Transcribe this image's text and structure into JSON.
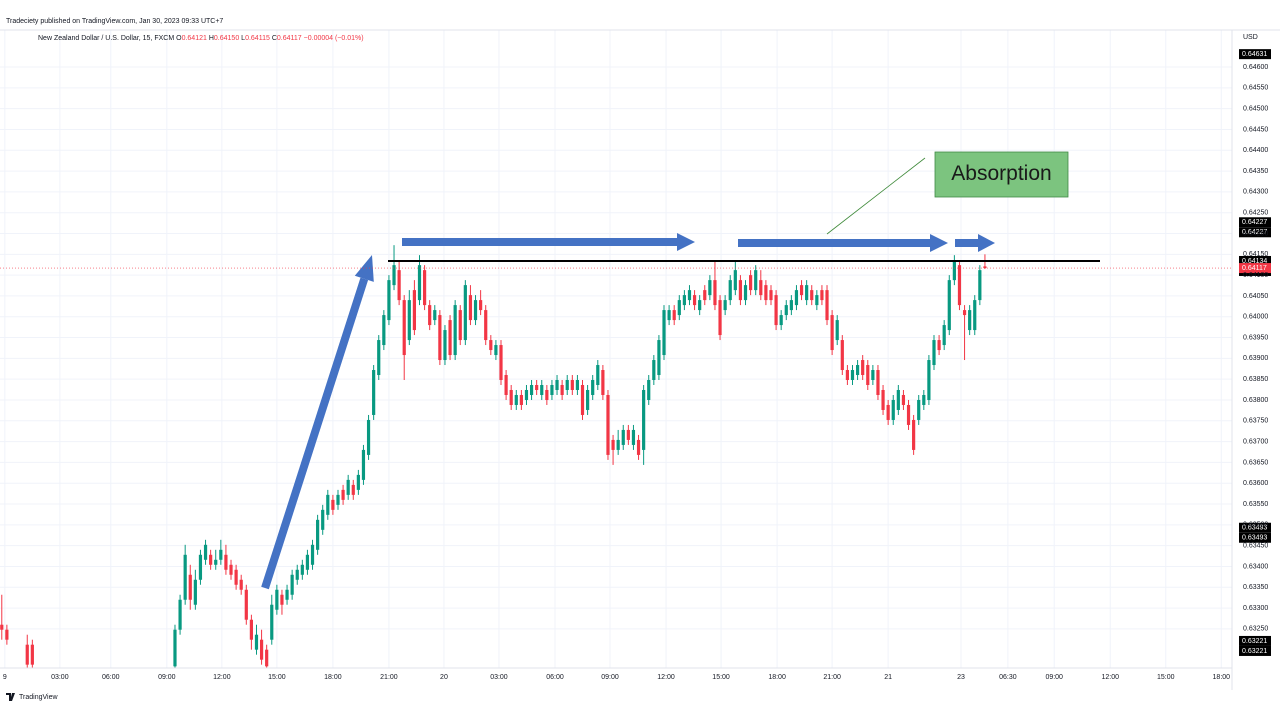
{
  "header": "Tradeciety published on TradingView.com, Jan 30, 2023 09:33 UTC+7",
  "footer": "TradingView",
  "chart_data": {
    "type": "candlestick",
    "legend": {
      "symbol": "New Zealand Dollar / U.S. Dollar, 15, FXCM",
      "fields": [
        {
          "key": "O",
          "text": "0.64121"
        },
        {
          "key": "H",
          "text": "0.64150"
        },
        {
          "key": "L",
          "text": "0.64115"
        },
        {
          "key": "C",
          "text": "0.64117"
        }
      ],
      "change": "−0.00004 (−0.01%)"
    },
    "y_axis_label": "USD",
    "annotation": "Absorption",
    "up_color": "#089981",
    "down_color": "#f23645",
    "level_line": 0.64134,
    "price_labels": [
      0.64631,
      0.64227,
      0.64227,
      0.64134,
      0.64134,
      0.64117,
      0.63493,
      0.63493,
      0.63221,
      0.63221
    ],
    "xlim": [
      -0.35,
      241.5
    ],
    "xticks": [
      {
        "value": 0.6,
        "label": "9"
      },
      {
        "value": 11.4,
        "label": "03:00"
      },
      {
        "value": 21.4,
        "label": "06:00"
      },
      {
        "value": 32.4,
        "label": "09:00"
      },
      {
        "value": 43.2,
        "label": "12:00"
      },
      {
        "value": 54,
        "label": "15:00"
      },
      {
        "value": 65,
        "label": "18:00"
      },
      {
        "value": 76,
        "label": "21:00"
      },
      {
        "value": 86.8,
        "label": "20"
      },
      {
        "value": 97.6,
        "label": "03:00"
      },
      {
        "value": 108.6,
        "label": "06:00"
      },
      {
        "value": 119.4,
        "label": "09:00"
      },
      {
        "value": 130.4,
        "label": "12:00"
      },
      {
        "value": 141.2,
        "label": "15:00"
      },
      {
        "value": 152.2,
        "label": "18:00"
      },
      {
        "value": 163,
        "label": "21:00"
      },
      {
        "value": 174,
        "label": "21"
      },
      {
        "value": 188.3,
        "label": "23"
      },
      {
        "value": 197.5,
        "label": "06:30"
      },
      {
        "value": 206.6,
        "label": "09:00"
      },
      {
        "value": 217.6,
        "label": "12:00"
      },
      {
        "value": 228.5,
        "label": "15:00"
      },
      {
        "value": 239.4,
        "label": "18:00"
      }
    ],
    "ylim": [
      0.63156,
      0.64689
    ],
    "yticks": [
      {
        "value": 0.6325,
        "label": "0.63250"
      },
      {
        "value": 0.633,
        "label": "0.63300"
      },
      {
        "value": 0.6335,
        "label": "0.63350"
      },
      {
        "value": 0.634,
        "label": "0.63400"
      },
      {
        "value": 0.6345,
        "label": "0.63450"
      },
      {
        "value": 0.635,
        "label": "0.63500"
      },
      {
        "value": 0.6355,
        "label": "0.63550"
      },
      {
        "value": 0.636,
        "label": "0.63600"
      },
      {
        "value": 0.6365,
        "label": "0.63650"
      },
      {
        "value": 0.637,
        "label": "0.63700"
      },
      {
        "value": 0.6375,
        "label": "0.63750"
      },
      {
        "value": 0.638,
        "label": "0.63800"
      },
      {
        "value": 0.6385,
        "label": "0.63850"
      },
      {
        "value": 0.639,
        "label": "0.63900"
      },
      {
        "value": 0.6395,
        "label": "0.63950"
      },
      {
        "value": 0.64,
        "label": "0.64000"
      },
      {
        "value": 0.6405,
        "label": "0.64050"
      },
      {
        "value": 0.641,
        "label": "0.64100"
      },
      {
        "value": 0.6415,
        "label": "0.64150"
      },
      {
        "value": 0.642,
        "label": "0.64200"
      },
      {
        "value": 0.6425,
        "label": "0.64250"
      },
      {
        "value": 0.643,
        "label": "0.64300"
      },
      {
        "value": 0.6435,
        "label": "0.64350"
      },
      {
        "value": 0.644,
        "label": "0.64400"
      },
      {
        "value": 0.6445,
        "label": "0.64450"
      },
      {
        "value": 0.645,
        "label": "0.64500"
      },
      {
        "value": 0.6455,
        "label": "0.64550"
      },
      {
        "value": 0.646,
        "label": "0.64600"
      }
    ],
    "x": [
      0,
      1,
      5,
      6,
      34,
      35,
      36,
      37,
      38,
      39,
      40,
      41,
      42,
      43,
      44,
      45,
      46,
      47,
      48,
      49,
      50,
      51,
      52,
      53,
      54,
      55,
      56,
      57,
      58,
      59,
      60,
      61,
      62,
      63,
      64,
      65,
      66,
      67,
      68,
      69,
      70,
      71,
      72,
      73,
      74,
      75,
      76,
      77,
      78,
      79,
      80,
      81,
      82,
      83,
      84,
      85,
      86,
      87,
      88,
      89,
      90,
      91,
      92,
      93,
      94,
      95,
      96,
      97,
      98,
      99,
      100,
      101,
      102,
      103,
      104,
      105,
      106,
      107,
      108,
      109,
      110,
      111,
      112,
      113,
      114,
      115,
      116,
      117,
      118,
      119,
      120,
      121,
      122,
      123,
      124,
      125,
      126,
      127,
      128,
      129,
      130,
      131,
      132,
      133,
      134,
      135,
      136,
      137,
      138,
      139,
      140,
      141,
      142,
      143,
      144,
      145,
      146,
      147,
      148,
      149,
      150,
      151,
      152,
      153,
      154,
      155,
      156,
      157,
      158,
      159,
      160,
      161,
      162,
      163,
      164,
      165,
      166,
      167,
      168,
      169,
      170,
      171,
      172,
      173,
      174,
      175,
      176,
      177,
      178,
      179,
      180,
      181,
      182,
      183,
      184,
      185,
      186,
      187,
      188,
      189,
      190,
      191,
      192,
      193
    ],
    "candles": [
      [
        0.6326,
        0.63332,
        0.63224,
        0.63248
      ],
      [
        0.63248,
        0.6326,
        0.63212,
        0.63224
      ],
      [
        0.63212,
        0.63236,
        0.6315,
        0.63164
      ],
      [
        0.63212,
        0.63224,
        0.6315,
        0.63164
      ],
      [
        0.6316,
        0.6326,
        0.6315,
        0.63248
      ],
      [
        0.63248,
        0.63332,
        0.63236,
        0.6332
      ],
      [
        0.6332,
        0.63452,
        0.63308,
        0.63428
      ],
      [
        0.6338,
        0.63404,
        0.63296,
        0.6332
      ],
      [
        0.63308,
        0.63392,
        0.63296,
        0.63368
      ],
      [
        0.63368,
        0.6344,
        0.63356,
        0.63428
      ],
      [
        0.63416,
        0.63464,
        0.63404,
        0.63452
      ],
      [
        0.63428,
        0.6344,
        0.63392,
        0.63404
      ],
      [
        0.63404,
        0.6344,
        0.63392,
        0.63416
      ],
      [
        0.63416,
        0.63464,
        0.63404,
        0.6344
      ],
      [
        0.63428,
        0.63452,
        0.6338,
        0.63392
      ],
      [
        0.63404,
        0.63416,
        0.63368,
        0.6338
      ],
      [
        0.63392,
        0.63404,
        0.63344,
        0.63356
      ],
      [
        0.63368,
        0.6338,
        0.63332,
        0.63344
      ],
      [
        0.63344,
        0.63356,
        0.6326,
        0.63272
      ],
      [
        0.63272,
        0.63284,
        0.632,
        0.63224
      ],
      [
        0.632,
        0.6326,
        0.63188,
        0.63236
      ],
      [
        0.63224,
        0.63248,
        0.63164,
        0.63176
      ],
      [
        0.632,
        0.63212,
        0.6315,
        0.6316
      ],
      [
        0.63224,
        0.63332,
        0.63212,
        0.63308
      ],
      [
        0.63296,
        0.63356,
        0.63284,
        0.63344
      ],
      [
        0.63332,
        0.63344,
        0.63284,
        0.63308
      ],
      [
        0.6332,
        0.63356,
        0.63308,
        0.63344
      ],
      [
        0.63332,
        0.63392,
        0.6332,
        0.6338
      ],
      [
        0.63368,
        0.63404,
        0.63356,
        0.63392
      ],
      [
        0.6338,
        0.63416,
        0.63368,
        0.63404
      ],
      [
        0.63392,
        0.6344,
        0.6338,
        0.63428
      ],
      [
        0.63404,
        0.63464,
        0.63392,
        0.63452
      ],
      [
        0.6344,
        0.63524,
        0.63428,
        0.63512
      ],
      [
        0.63488,
        0.63548,
        0.63476,
        0.63536
      ],
      [
        0.63524,
        0.63584,
        0.63512,
        0.63572
      ],
      [
        0.6356,
        0.63572,
        0.63524,
        0.63536
      ],
      [
        0.63548,
        0.63584,
        0.63536,
        0.63572
      ],
      [
        0.63584,
        0.63596,
        0.63548,
        0.6356
      ],
      [
        0.63572,
        0.6362,
        0.6356,
        0.63608
      ],
      [
        0.63596,
        0.63608,
        0.6356,
        0.63572
      ],
      [
        0.63584,
        0.63632,
        0.63572,
        0.6362
      ],
      [
        0.63608,
        0.63692,
        0.63596,
        0.6368
      ],
      [
        0.63668,
        0.63764,
        0.63656,
        0.63752
      ],
      [
        0.63764,
        0.63884,
        0.63752,
        0.63872
      ],
      [
        0.6386,
        0.63956,
        0.63848,
        0.63944
      ],
      [
        0.63932,
        0.64016,
        0.6392,
        0.64004
      ],
      [
        0.63992,
        0.641,
        0.6398,
        0.64088
      ],
      [
        0.64076,
        0.64172,
        0.64064,
        0.64124
      ],
      [
        0.64112,
        0.64136,
        0.64028,
        0.6404
      ],
      [
        0.6404,
        0.64052,
        0.63848,
        0.63908
      ],
      [
        0.63944,
        0.64064,
        0.63932,
        0.6404
      ],
      [
        0.64064,
        0.64088,
        0.63956,
        0.63968
      ],
      [
        0.6404,
        0.64148,
        0.64028,
        0.64124
      ],
      [
        0.64112,
        0.64124,
        0.64016,
        0.64028
      ],
      [
        0.64028,
        0.6404,
        0.63968,
        0.6398
      ],
      [
        0.63992,
        0.64028,
        0.6398,
        0.64016
      ],
      [
        0.64004,
        0.64016,
        0.63884,
        0.63896
      ],
      [
        0.63896,
        0.6398,
        0.63884,
        0.63968
      ],
      [
        0.63992,
        0.64004,
        0.63896,
        0.63908
      ],
      [
        0.63908,
        0.6404,
        0.63896,
        0.64028
      ],
      [
        0.64016,
        0.64028,
        0.63932,
        0.63944
      ],
      [
        0.63944,
        0.64088,
        0.63932,
        0.64076
      ],
      [
        0.64052,
        0.64076,
        0.6398,
        0.63992
      ],
      [
        0.63992,
        0.64052,
        0.6398,
        0.6404
      ],
      [
        0.6404,
        0.64064,
        0.64004,
        0.64016
      ],
      [
        0.64016,
        0.64028,
        0.63932,
        0.63944
      ],
      [
        0.63944,
        0.63956,
        0.63908,
        0.6392
      ],
      [
        0.63908,
        0.63944,
        0.63896,
        0.63932
      ],
      [
        0.63932,
        0.63944,
        0.63836,
        0.63848
      ],
      [
        0.6386,
        0.63872,
        0.638,
        0.63812
      ],
      [
        0.63824,
        0.63836,
        0.63776,
        0.63788
      ],
      [
        0.63788,
        0.63824,
        0.63776,
        0.63812
      ],
      [
        0.63812,
        0.63824,
        0.63776,
        0.63788
      ],
      [
        0.638,
        0.63836,
        0.63788,
        0.63824
      ],
      [
        0.63812,
        0.63848,
        0.638,
        0.63836
      ],
      [
        0.63836,
        0.63848,
        0.63812,
        0.63824
      ],
      [
        0.63812,
        0.63848,
        0.638,
        0.63836
      ],
      [
        0.63824,
        0.63836,
        0.63788,
        0.638
      ],
      [
        0.63812,
        0.63848,
        0.638,
        0.63836
      ],
      [
        0.63824,
        0.6386,
        0.63812,
        0.63848
      ],
      [
        0.63836,
        0.63848,
        0.638,
        0.63812
      ],
      [
        0.63824,
        0.6386,
        0.63812,
        0.63848
      ],
      [
        0.63848,
        0.6386,
        0.63812,
        0.63824
      ],
      [
        0.63824,
        0.6386,
        0.63812,
        0.63848
      ],
      [
        0.63836,
        0.63848,
        0.63752,
        0.63764
      ],
      [
        0.63776,
        0.63836,
        0.63764,
        0.63824
      ],
      [
        0.63812,
        0.6386,
        0.638,
        0.63848
      ],
      [
        0.63836,
        0.63896,
        0.63824,
        0.63884
      ],
      [
        0.63872,
        0.63884,
        0.638,
        0.63812
      ],
      [
        0.63812,
        0.63824,
        0.63656,
        0.63668
      ],
      [
        0.63704,
        0.63716,
        0.63644,
        0.6368
      ],
      [
        0.6368,
        0.63728,
        0.63668,
        0.63704
      ],
      [
        0.63692,
        0.6374,
        0.6368,
        0.63728
      ],
      [
        0.63728,
        0.6374,
        0.63692,
        0.63704
      ],
      [
        0.63692,
        0.6374,
        0.6368,
        0.63728
      ],
      [
        0.63704,
        0.63716,
        0.63656,
        0.63668
      ],
      [
        0.6368,
        0.63836,
        0.63644,
        0.63824
      ],
      [
        0.638,
        0.6386,
        0.63788,
        0.63848
      ],
      [
        0.63848,
        0.63908,
        0.63836,
        0.63896
      ],
      [
        0.6386,
        0.63956,
        0.63848,
        0.63944
      ],
      [
        0.63908,
        0.64028,
        0.63896,
        0.64016
      ],
      [
        0.63992,
        0.64028,
        0.6398,
        0.64016
      ],
      [
        0.64016,
        0.64028,
        0.6398,
        0.63992
      ],
      [
        0.64004,
        0.64052,
        0.63992,
        0.6404
      ],
      [
        0.64028,
        0.64064,
        0.64016,
        0.64052
      ],
      [
        0.6404,
        0.64076,
        0.64028,
        0.64064
      ],
      [
        0.64052,
        0.64064,
        0.64016,
        0.64028
      ],
      [
        0.64016,
        0.64052,
        0.64004,
        0.6404
      ],
      [
        0.64064,
        0.64076,
        0.64028,
        0.6404
      ],
      [
        0.64052,
        0.641,
        0.6404,
        0.64088
      ],
      [
        0.64088,
        0.64136,
        0.64016,
        0.64028
      ],
      [
        0.6404,
        0.64052,
        0.63944,
        0.63956
      ],
      [
        0.64016,
        0.64052,
        0.64004,
        0.6404
      ],
      [
        0.6404,
        0.641,
        0.64028,
        0.64088
      ],
      [
        0.64064,
        0.64136,
        0.64052,
        0.64112
      ],
      [
        0.64088,
        0.641,
        0.64028,
        0.6404
      ],
      [
        0.6404,
        0.64088,
        0.64028,
        0.64076
      ],
      [
        0.641,
        0.64112,
        0.64052,
        0.64064
      ],
      [
        0.64064,
        0.64124,
        0.64052,
        0.64112
      ],
      [
        0.64088,
        0.64112,
        0.6404,
        0.64052
      ],
      [
        0.64076,
        0.64088,
        0.64028,
        0.6404
      ],
      [
        0.64064,
        0.64076,
        0.64028,
        0.6404
      ],
      [
        0.64052,
        0.64064,
        0.63968,
        0.6398
      ],
      [
        0.6398,
        0.64016,
        0.63968,
        0.64004
      ],
      [
        0.64004,
        0.6404,
        0.63992,
        0.64028
      ],
      [
        0.64016,
        0.64052,
        0.64004,
        0.6404
      ],
      [
        0.64028,
        0.64076,
        0.64016,
        0.64064
      ],
      [
        0.64076,
        0.64088,
        0.6404,
        0.64052
      ],
      [
        0.6404,
        0.64088,
        0.64028,
        0.64076
      ],
      [
        0.64064,
        0.64076,
        0.64028,
        0.6404
      ],
      [
        0.64028,
        0.64064,
        0.64016,
        0.64052
      ],
      [
        0.64064,
        0.64076,
        0.64028,
        0.6404
      ],
      [
        0.64064,
        0.64076,
        0.6398,
        0.63992
      ],
      [
        0.64004,
        0.64016,
        0.63908,
        0.6392
      ],
      [
        0.63944,
        0.64004,
        0.63932,
        0.63992
      ],
      [
        0.63944,
        0.63956,
        0.6386,
        0.63872
      ],
      [
        0.63872,
        0.63884,
        0.63836,
        0.63848
      ],
      [
        0.63848,
        0.63884,
        0.63836,
        0.63872
      ],
      [
        0.6386,
        0.63896,
        0.63848,
        0.63884
      ],
      [
        0.63896,
        0.63908,
        0.63848,
        0.6386
      ],
      [
        0.63884,
        0.63896,
        0.63824,
        0.63836
      ],
      [
        0.63848,
        0.63884,
        0.63836,
        0.63872
      ],
      [
        0.63872,
        0.63884,
        0.638,
        0.63812
      ],
      [
        0.63824,
        0.63836,
        0.63764,
        0.63776
      ],
      [
        0.63788,
        0.638,
        0.6374,
        0.63752
      ],
      [
        0.63752,
        0.63812,
        0.6374,
        0.638
      ],
      [
        0.63776,
        0.63836,
        0.63764,
        0.63824
      ],
      [
        0.63812,
        0.63824,
        0.63776,
        0.63788
      ],
      [
        0.63788,
        0.638,
        0.63728,
        0.6374
      ],
      [
        0.63752,
        0.63764,
        0.63668,
        0.6368
      ],
      [
        0.63752,
        0.63812,
        0.6374,
        0.638
      ],
      [
        0.63788,
        0.63824,
        0.63776,
        0.63812
      ],
      [
        0.638,
        0.63908,
        0.63788,
        0.63896
      ],
      [
        0.63884,
        0.63956,
        0.63872,
        0.63944
      ],
      [
        0.63944,
        0.63956,
        0.63908,
        0.6392
      ],
      [
        0.63932,
        0.63992,
        0.6392,
        0.6398
      ],
      [
        0.63968,
        0.641,
        0.63956,
        0.64088
      ],
      [
        0.64088,
        0.64148,
        0.64076,
        0.64136
      ],
      [
        0.64124,
        0.64136,
        0.64016,
        0.64028
      ],
      [
        0.64016,
        0.64028,
        0.63896,
        0.64004
      ],
      [
        0.63968,
        0.64028,
        0.63956,
        0.64016
      ],
      [
        0.63968,
        0.64052,
        0.63956,
        0.6404
      ],
      [
        0.6404,
        0.64124,
        0.64028,
        0.64112
      ],
      [
        0.64121,
        0.6415,
        0.64115,
        0.64117
      ]
    ]
  }
}
